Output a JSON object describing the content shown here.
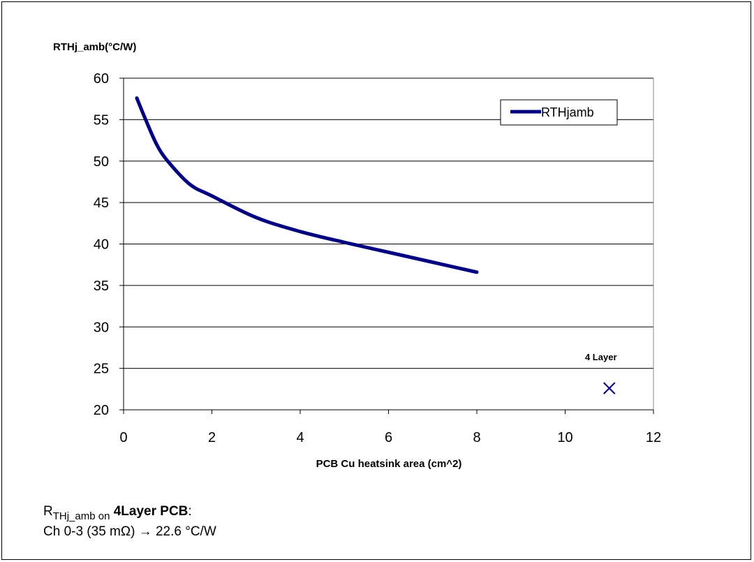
{
  "chart_data": {
    "type": "line",
    "title": "",
    "ylabel": "RTHj_amb(°C/W)",
    "xlabel": "PCB Cu heatsink area (cm^2)",
    "xlim": [
      0,
      12
    ],
    "ylim": [
      20,
      60
    ],
    "xticks": [
      "0",
      "2",
      "4",
      "6",
      "8",
      "10",
      "12"
    ],
    "yticks": [
      "20",
      "25",
      "30",
      "35",
      "40",
      "45",
      "50",
      "55",
      "60"
    ],
    "grid": "horizontal",
    "legend_position": "top-right",
    "color": "#000080",
    "series": [
      {
        "name": "RTHjamb",
        "x": [
          0.3,
          0.5,
          0.75,
          1.0,
          1.5,
          2.0,
          3.0,
          4.0,
          5.0,
          6.0,
          7.0,
          8.0
        ],
        "y": [
          57.6,
          55.0,
          52.0,
          50.0,
          47.2,
          45.8,
          43.2,
          41.5,
          40.2,
          39.0,
          37.8,
          36.6
        ]
      }
    ],
    "points": [
      {
        "label": "4 Layer",
        "x": 11,
        "y": 22.6,
        "marker": "x"
      }
    ]
  },
  "notes": {
    "line1_r": "R",
    "line1_sub": "THj_amb on",
    "line1_bold": "4Layer PCB",
    "line1_colon": ":",
    "line2": "Ch 0-3 (35 mΩ) → 22.6 °C/W"
  }
}
